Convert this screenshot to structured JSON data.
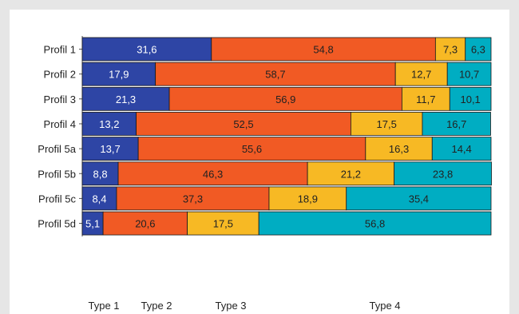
{
  "chart_data": {
    "type": "bar",
    "orientation": "horizontal",
    "stacked": true,
    "title": "",
    "xlabel": "",
    "ylabel": "",
    "xlim": [
      0,
      100
    ],
    "grid": false,
    "legend_position": "bottom",
    "categories": [
      "Profil 1",
      "Profil 2",
      "Profil 3",
      "Profil 4",
      "Profil 5a",
      "Profil 5b",
      "Profil 5c",
      "Profil 5d"
    ],
    "series": [
      {
        "name": "Type 1",
        "color": "#2e45a5",
        "label_color": "#ffffff",
        "values": [
          31.6,
          17.9,
          21.3,
          13.2,
          13.7,
          8.8,
          8.4,
          5.1
        ],
        "labels": [
          "31,6",
          "17,9",
          "21,3",
          "13,2",
          "13,7",
          "8,8",
          "8,4",
          "5,1"
        ]
      },
      {
        "name": "Type 2",
        "color": "#f15a24",
        "label_color": "#222222",
        "values": [
          54.8,
          58.7,
          56.9,
          52.5,
          55.6,
          46.3,
          37.3,
          20.6
        ],
        "labels": [
          "54,8",
          "58,7",
          "56,9",
          "52,5",
          "55,6",
          "46,3",
          "37,3",
          "20,6"
        ]
      },
      {
        "name": "Type 3",
        "color": "#f7b924",
        "label_color": "#222222",
        "values": [
          7.3,
          12.7,
          11.7,
          17.5,
          16.3,
          21.2,
          18.9,
          17.5
        ],
        "labels": [
          "7,3",
          "12,7",
          "11,7",
          "17,5",
          "16,3",
          "21,2",
          "18,9",
          "17,5"
        ]
      },
      {
        "name": "Type 4",
        "color": "#00adc2",
        "label_color": "#222222",
        "values": [
          6.3,
          10.7,
          10.1,
          16.7,
          14.4,
          23.8,
          35.4,
          56.8
        ],
        "labels": [
          "6,3",
          "10,7",
          "10,1",
          "16,7",
          "14,4",
          "23,8",
          "35,4",
          "56,8"
        ]
      }
    ]
  }
}
